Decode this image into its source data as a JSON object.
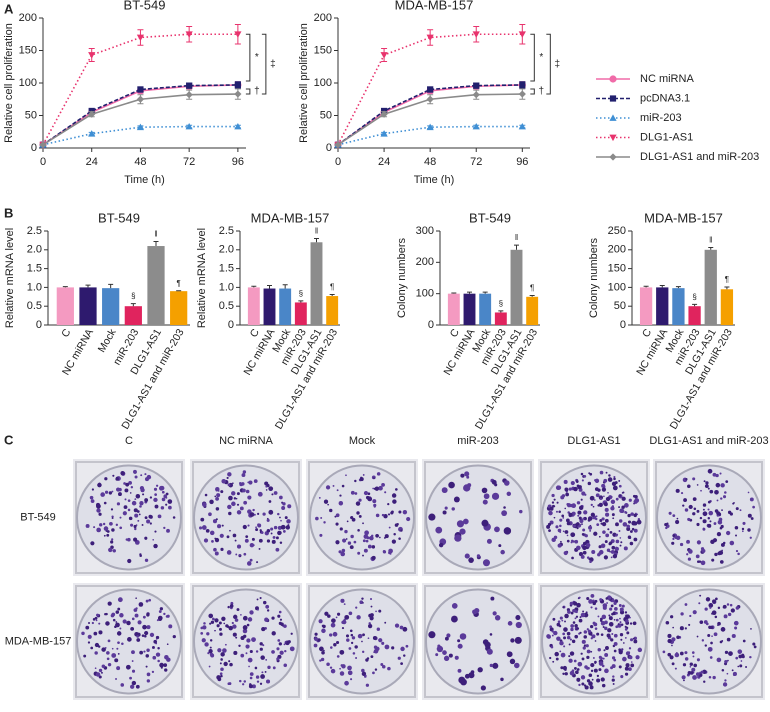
{
  "panels": [
    "A",
    "B",
    "C"
  ],
  "chart_data": [
    {
      "type": "line",
      "title": "BT-549",
      "x_label": "Time (h)",
      "y_label": "Relative cell proliferation",
      "x": [
        0,
        24,
        48,
        72,
        96
      ],
      "xlim": [
        0,
        100
      ],
      "xticks": [
        0,
        24,
        48,
        72,
        96
      ],
      "ylim": [
        0,
        200
      ],
      "yticks": [
        0,
        50,
        100,
        150,
        200
      ],
      "legend": true,
      "annotations": [
        "*",
        "‡",
        "†"
      ],
      "series": [
        {
          "name": "NC miRNA",
          "color": "#f06ba8",
          "marker": "circle",
          "dash": "solid",
          "values": [
            5,
            55,
            88,
            95,
            97
          ],
          "errors": [
            1,
            3,
            4,
            4,
            5
          ]
        },
        {
          "name": "pcDNA3.1",
          "color": "#22206e",
          "marker": "square",
          "dash": "dashed",
          "values": [
            5,
            57,
            90,
            96,
            97
          ],
          "errors": [
            1,
            3,
            4,
            4,
            5
          ]
        },
        {
          "name": "miR-203",
          "color": "#3f8fd4",
          "marker": "triangle-up",
          "dash": "dotted",
          "values": [
            5,
            22,
            32,
            33,
            33
          ],
          "errors": [
            1,
            2,
            2,
            2,
            2
          ]
        },
        {
          "name": "DLG1-AS1",
          "color": "#e8336d",
          "marker": "triangle-down",
          "dash": "dotted",
          "values": [
            5,
            143,
            170,
            175,
            175
          ],
          "errors": [
            1,
            10,
            12,
            12,
            15
          ]
        },
        {
          "name": "DLG1-AS1 and miR-203",
          "color": "#8a8a8a",
          "marker": "diamond",
          "dash": "solid",
          "values": [
            5,
            52,
            75,
            82,
            83
          ],
          "errors": [
            1,
            4,
            7,
            7,
            8
          ]
        }
      ]
    },
    {
      "type": "line",
      "title": "MDA-MB-157",
      "x_label": "Time (h)",
      "y_label": "Relative cell proliferation",
      "x": [
        0,
        24,
        48,
        72,
        96
      ],
      "xlim": [
        0,
        100
      ],
      "xticks": [
        0,
        24,
        48,
        72,
        96
      ],
      "ylim": [
        0,
        200
      ],
      "yticks": [
        0,
        50,
        100,
        150,
        200
      ],
      "legend": false,
      "annotations": [
        "*",
        "‡",
        "†"
      ],
      "series": [
        {
          "name": "NC miRNA",
          "color": "#f06ba8",
          "marker": "circle",
          "dash": "solid",
          "values": [
            5,
            55,
            88,
            95,
            97
          ],
          "errors": [
            1,
            3,
            4,
            4,
            5
          ]
        },
        {
          "name": "pcDNA3.1",
          "color": "#22206e",
          "marker": "square",
          "dash": "dashed",
          "values": [
            5,
            57,
            90,
            96,
            97
          ],
          "errors": [
            1,
            3,
            4,
            4,
            5
          ]
        },
        {
          "name": "miR-203",
          "color": "#3f8fd4",
          "marker": "triangle-up",
          "dash": "dotted",
          "values": [
            5,
            22,
            32,
            33,
            33
          ],
          "errors": [
            1,
            2,
            2,
            2,
            2
          ]
        },
        {
          "name": "DLG1-AS1",
          "color": "#e8336d",
          "marker": "triangle-down",
          "dash": "dotted",
          "values": [
            5,
            143,
            170,
            175,
            175
          ],
          "errors": [
            1,
            10,
            12,
            12,
            15
          ]
        },
        {
          "name": "DLG1-AS1 and miR-203",
          "color": "#8a8a8a",
          "marker": "diamond",
          "dash": "solid",
          "values": [
            5,
            52,
            75,
            82,
            83
          ],
          "errors": [
            1,
            4,
            7,
            7,
            8
          ]
        }
      ]
    },
    {
      "type": "bar",
      "title": "BT-549",
      "y_label": "Relative mRNA level",
      "categories": [
        "C",
        "NC miRNA",
        "Mock",
        "miR-203",
        "DLG1-AS1",
        "DLG1-AS1 and miR-203"
      ],
      "values": [
        1.0,
        1.0,
        0.98,
        0.5,
        2.1,
        0.9
      ],
      "errors": [
        0.02,
        0.06,
        0.1,
        0.07,
        0.12,
        0.01
      ],
      "bar_marks": [
        null,
        null,
        null,
        "§",
        "‖",
        "¶"
      ],
      "colors": [
        "#f49ac1",
        "#2e1a6e",
        "#4a86c8",
        "#e0245e",
        "#8c8c8c",
        "#f5a000"
      ],
      "ylim": [
        0,
        2.5
      ],
      "yticks": [
        0,
        0.5,
        {
          "value": 1,
          "label": "1.0"
        },
        1.5,
        {
          "value": 2,
          "label": "2.0"
        },
        2.5
      ]
    },
    {
      "type": "bar",
      "title": "MDA-MB-157",
      "y_label": "Relative mRNA level",
      "categories": [
        "C",
        "NC miRNA",
        "Mock",
        "miR-203",
        "DLG1-AS1",
        "DLG1-AS1 and miR-203"
      ],
      "values": [
        1.0,
        0.97,
        0.97,
        0.6,
        2.2,
        0.77
      ],
      "errors": [
        0.03,
        0.08,
        0.1,
        0.04,
        0.1,
        0.04
      ],
      "bar_marks": [
        null,
        null,
        null,
        "§",
        "‖",
        "¶"
      ],
      "colors": [
        "#f49ac1",
        "#2e1a6e",
        "#4a86c8",
        "#e0245e",
        "#8c8c8c",
        "#f5a000"
      ],
      "ylim": [
        0,
        2.5
      ],
      "yticks": [
        0,
        0.5,
        {
          "value": 1,
          "label": "1.0"
        },
        1.5,
        {
          "value": 2,
          "label": "2.0"
        },
        2.5
      ]
    },
    {
      "type": "bar",
      "title": "BT-549",
      "y_label": "Colony numbers",
      "categories": [
        "C",
        "NC miRNA",
        "Mock",
        "miR-203",
        "DLG1-AS1",
        "DLG1-AS1 and miR-203"
      ],
      "values": [
        100,
        100,
        100,
        40,
        240,
        90
      ],
      "errors": [
        2,
        5,
        5,
        5,
        15,
        4
      ],
      "bar_marks": [
        null,
        null,
        null,
        "§",
        "‖",
        "¶"
      ],
      "colors": [
        "#f49ac1",
        "#2e1a6e",
        "#4a86c8",
        "#e0245e",
        "#8c8c8c",
        "#f5a000"
      ],
      "ylim": [
        0,
        300
      ],
      "yticks": [
        0,
        100,
        200,
        300
      ]
    },
    {
      "type": "bar",
      "title": "MDA-MB-157",
      "y_label": "Colony numbers",
      "categories": [
        "C",
        "NC miRNA",
        "Mock",
        "miR-203",
        "DLG1-AS1",
        "DLG1-AS1 and miR-203"
      ],
      "values": [
        100,
        100,
        98,
        50,
        200,
        95
      ],
      "errors": [
        3,
        5,
        4,
        5,
        6,
        6
      ],
      "bar_marks": [
        null,
        null,
        null,
        "§",
        "‖",
        "¶"
      ],
      "colors": [
        "#f49ac1",
        "#2e1a6e",
        "#4a86c8",
        "#e0245e",
        "#8c8c8c",
        "#f5a000"
      ],
      "ylim": [
        0,
        250
      ],
      "yticks": [
        0,
        50,
        100,
        150,
        200,
        250
      ]
    }
  ],
  "colony_images": {
    "columns": [
      "C",
      "NC miRNA",
      "Mock",
      "miR-203",
      "DLG1-AS1",
      "DLG1-AS1 and miR-203"
    ],
    "rows": [
      "BT-549",
      "MDA-MB-157"
    ]
  }
}
